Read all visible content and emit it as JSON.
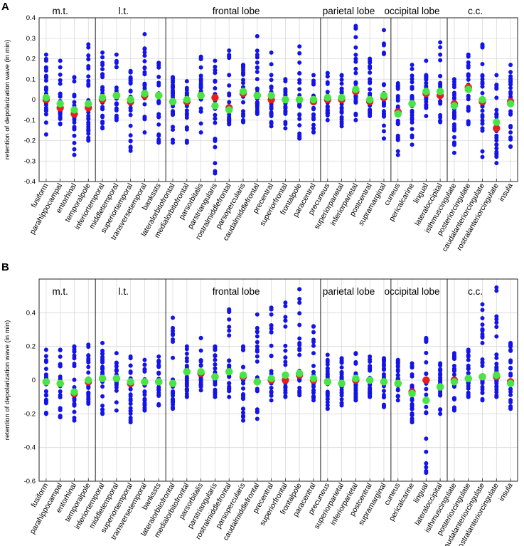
{
  "figure": {
    "colors": {
      "points": "#1414e6",
      "median": "#e61e1e",
      "mean": "#46e646",
      "grid": "#d9d9d9",
      "frame": "#222222"
    }
  },
  "chart_data": [
    {
      "type": "scatter",
      "panel": "A",
      "ylabel": "retention of depolarization wave (in min)",
      "ylim": [
        -0.4,
        0.4
      ],
      "yticks": [
        "0.4",
        "0.3",
        "0.2",
        "0.1",
        "0",
        "-0.1",
        "-0.2",
        "-0.3",
        "-0.4"
      ],
      "ytick_values": [
        0.4,
        0.3,
        0.2,
        0.1,
        0,
        -0.1,
        -0.2,
        -0.3,
        -0.4
      ],
      "groups": [
        {
          "label": "m.t.",
          "from": 0,
          "to": 3
        },
        {
          "label": "l.t.",
          "from": 4,
          "to": 8
        },
        {
          "label": "frontal lobe",
          "from": 9,
          "to": 19
        },
        {
          "label": "parietal lobe",
          "from": 20,
          "to": 24
        },
        {
          "label": "occipital lobe",
          "from": 25,
          "to": 28
        },
        {
          "label": "c.c.",
          "from": 29,
          "to": 33
        },
        {
          "label": "",
          "from": 34,
          "to": 34
        }
      ],
      "categories": [
        "fusiform",
        "parahippocampal",
        "entorhinal",
        "temporalpole",
        "inferiortemporal",
        "middletemporal",
        "superiortemporal",
        "transversetemporal",
        "bankssts",
        "lateralorbitofrontal",
        "medialorbitofrontal",
        "parsorbitalis",
        "parstriangularis",
        "rostralmiddlefrontal",
        "parsopercularis",
        "caudalmiddlefrontal",
        "precentral",
        "superiorfrontal",
        "frontalpole",
        "paracentral",
        "precuneus",
        "superiorparietal",
        "inferiorparietal",
        "postcentral",
        "supramarginal",
        "cuneus",
        "pericalcarine",
        "lingual",
        "lateraloccipital",
        "isthmuscingulate",
        "posteriorcingulate",
        "caudalanteriorcingulate",
        "rostralanteriorcingulate",
        "insula"
      ],
      "min": [
        -0.17,
        -0.12,
        -0.27,
        -0.2,
        -0.14,
        -0.1,
        -0.25,
        -0.16,
        -0.21,
        -0.21,
        -0.21,
        -0.16,
        -0.36,
        -0.12,
        -0.11,
        -0.07,
        -0.13,
        -0.14,
        -0.19,
        -0.16,
        -0.1,
        -0.13,
        -0.1,
        -0.08,
        -0.19,
        -0.27,
        -0.22,
        -0.08,
        -0.11,
        -0.26,
        -0.12,
        -0.28,
        -0.31,
        -0.23
      ],
      "max": [
        0.22,
        0.19,
        0.11,
        0.27,
        0.23,
        0.22,
        0.14,
        0.32,
        0.18,
        0.11,
        0.09,
        0.21,
        0.19,
        0.24,
        0.17,
        0.31,
        0.23,
        0.1,
        0.26,
        0.12,
        0.13,
        0.12,
        0.36,
        0.2,
        0.34,
        0.08,
        0.17,
        0.19,
        0.28,
        0.1,
        0.22,
        0.27,
        0.12,
        0.17
      ],
      "median": [
        0.0,
        -0.04,
        -0.07,
        -0.04,
        0.0,
        0.02,
        -0.01,
        0.02,
        0.02,
        -0.01,
        -0.01,
        0.02,
        0.01,
        -0.04,
        0.03,
        0.02,
        0.0,
        0.0,
        0.0,
        -0.01,
        0.0,
        0.0,
        0.04,
        -0.01,
        0.01,
        -0.06,
        -0.02,
        0.03,
        0.02,
        -0.02,
        0.06,
        -0.01,
        -0.14,
        -0.01
      ],
      "mean": [
        0.01,
        -0.02,
        -0.05,
        -0.02,
        0.01,
        0.02,
        0.0,
        0.03,
        0.02,
        -0.01,
        0.0,
        0.02,
        -0.03,
        -0.05,
        0.04,
        0.02,
        0.02,
        0.0,
        0.0,
        0.0,
        0.01,
        0.01,
        0.05,
        0.0,
        0.02,
        -0.07,
        -0.02,
        0.04,
        0.04,
        -0.03,
        0.05,
        0.0,
        -0.11,
        -0.02
      ]
    },
    {
      "type": "scatter",
      "panel": "B",
      "ylabel": "retention of depolarization wave (in min)",
      "ylim": [
        -0.6,
        0.6
      ],
      "yticks": [
        "0.4",
        "0.2",
        "0",
        "-0.2",
        "-0.4",
        "-0.6"
      ],
      "ytick_values": [
        0.4,
        0.2,
        0,
        -0.2,
        -0.4,
        -0.6
      ],
      "groups": [
        {
          "label": "m.t.",
          "from": 0,
          "to": 3
        },
        {
          "label": "l.t.",
          "from": 4,
          "to": 8
        },
        {
          "label": "frontal lobe",
          "from": 9,
          "to": 19
        },
        {
          "label": "parietal lobe",
          "from": 20,
          "to": 24
        },
        {
          "label": "occipital lobe",
          "from": 25,
          "to": 28
        },
        {
          "label": "c.c.",
          "from": 29,
          "to": 33
        },
        {
          "label": "",
          "from": 34,
          "to": 34
        }
      ],
      "categories": [
        "fusiform",
        "parahippocampal",
        "entorhinal",
        "temporalpole",
        "inferiortemporal",
        "middletemporal",
        "superiortemporal",
        "transversetemporal",
        "bankssts",
        "lateralorbitofrontal",
        "medialorbitofrontal",
        "parsorbitalis",
        "parstriangularis",
        "rostralmiddlefrontal",
        "parsopercularis",
        "caudalmiddlefrontal",
        "precentral",
        "superiorfrontal",
        "frontalpole",
        "paracentral",
        "precuneus",
        "superiorparietal",
        "inferiorparietal",
        "postcentral",
        "supramarginal",
        "cuneus",
        "pericalcarine",
        "lingual",
        "lateraloccipital",
        "isthmuscingulate",
        "posteriorcingulate",
        "caudalanteriorcingulate",
        "rostralanteriorcingulate",
        "insula"
      ],
      "min": [
        -0.2,
        -0.22,
        -0.24,
        -0.14,
        -0.2,
        -0.18,
        -0.25,
        -0.18,
        -0.15,
        -0.17,
        -0.1,
        -0.06,
        -0.1,
        -0.1,
        -0.24,
        -0.23,
        -0.12,
        -0.1,
        -0.09,
        -0.12,
        -0.17,
        -0.15,
        -0.12,
        -0.1,
        -0.16,
        -0.12,
        -0.25,
        -0.55,
        -0.2,
        -0.18,
        -0.1,
        -0.12,
        -0.1,
        -0.17
      ],
      "max": [
        0.18,
        0.18,
        0.2,
        0.21,
        0.22,
        0.16,
        0.14,
        0.12,
        0.14,
        0.37,
        0.2,
        0.25,
        0.2,
        0.42,
        0.2,
        0.39,
        0.43,
        0.46,
        0.54,
        0.32,
        0.15,
        0.13,
        0.16,
        0.14,
        0.13,
        0.12,
        0.1,
        0.25,
        0.1,
        0.16,
        0.18,
        0.45,
        0.55,
        0.22
      ],
      "median": [
        -0.01,
        -0.02,
        -0.08,
        -0.01,
        0.01,
        0.01,
        -0.02,
        -0.01,
        -0.01,
        -0.02,
        0.05,
        0.04,
        0.02,
        0.05,
        0.02,
        -0.01,
        0.0,
        0.0,
        0.03,
        0.0,
        -0.01,
        -0.02,
        0.0,
        0.0,
        -0.01,
        -0.02,
        -0.07,
        0.0,
        -0.04,
        0.0,
        0.01,
        0.02,
        0.02,
        -0.01
      ],
      "mean": [
        -0.01,
        -0.02,
        -0.07,
        0.0,
        0.01,
        0.01,
        -0.01,
        -0.01,
        -0.01,
        -0.02,
        0.05,
        0.05,
        0.02,
        0.05,
        0.03,
        -0.01,
        0.01,
        0.03,
        0.04,
        0.01,
        -0.01,
        -0.02,
        0.01,
        0.0,
        -0.01,
        -0.02,
        -0.08,
        -0.12,
        -0.04,
        -0.01,
        0.01,
        0.02,
        0.03,
        -0.02
      ]
    }
  ]
}
